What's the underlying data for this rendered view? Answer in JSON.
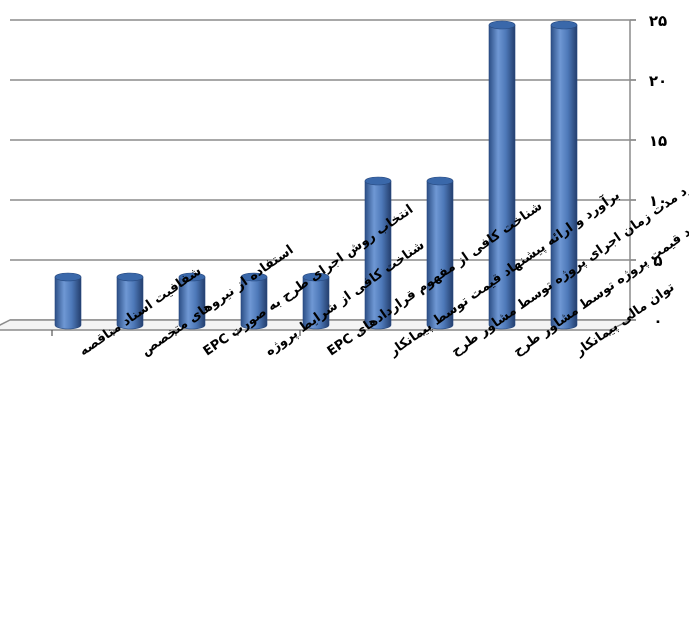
{
  "chart_data": {
    "type": "bar",
    "title": "",
    "xlabel": "",
    "ylabel": "",
    "ylim": [
      0,
      25
    ],
    "y_ticks": [
      0,
      5,
      10,
      15,
      20,
      25
    ],
    "y_tick_labels": [
      "۰",
      "۵",
      "۱۰",
      "۱۵",
      "۲۰",
      "۲۵"
    ],
    "grid": true,
    "legend": "none",
    "categories": [
      "توان مالی پیمانکار",
      "برآورد قیمت پروژه توسط مشاور طرح",
      "برآورد مدت زمان اجرای پروژه توسط مشاور طرح",
      "برآورد و ارائه پیشنهاد قیمت توسط پیمانکار",
      "شناخت کافی از مفهوم قراردادهای EPC",
      "شناخت کافی از شرایط پروژه",
      "انتخاب روش اجرای طرح به صورت EPC",
      "استفاده از نیروهای متخصص",
      "شفافیت اسناد مناقصه"
    ],
    "values": [
      25,
      25,
      12,
      12,
      4,
      4,
      4,
      4,
      4
    ],
    "bar_color": "#4f81bd"
  }
}
